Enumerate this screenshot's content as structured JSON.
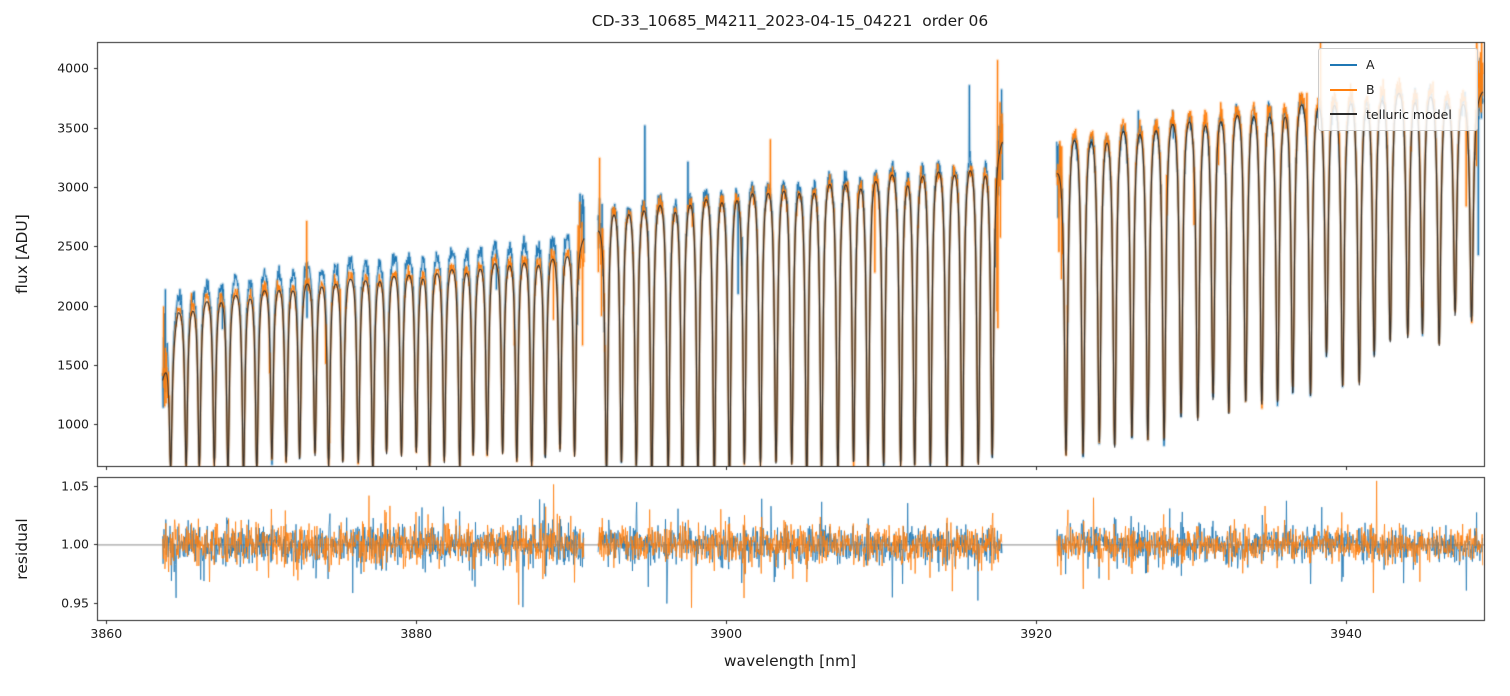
{
  "chart_data": {
    "type": "line",
    "title": "CD-33_10685_M4211_2023-04-15_04221  order 06",
    "xlabel": "wavelength [nm]",
    "xlim": [
      3859.4,
      3948.9
    ],
    "xticks": [
      3860,
      3880,
      3900,
      3920,
      3940
    ],
    "panels": [
      {
        "name": "flux",
        "ylabel": "flux [ADU]",
        "ylim": [
          650,
          4220
        ],
        "yticks": [
          1000,
          1500,
          2000,
          2500,
          3000,
          3500,
          4000
        ]
      },
      {
        "name": "residual",
        "ylabel": "residual",
        "ylim": [
          0.935,
          1.058
        ],
        "yticks": [
          0.95,
          1.0,
          1.05
        ],
        "baseline": 1.0
      }
    ],
    "legend": {
      "position": "upper right",
      "entries": [
        {
          "label": "A",
          "color": "#1f77b4"
        },
        {
          "label": "B",
          "color": "#ff7f0e"
        },
        {
          "label": "telluric model",
          "color": "#2b2b2b"
        }
      ]
    },
    "series": [
      {
        "name": "A",
        "color": "#1f77b4",
        "scales": [
          1.065,
          1.02,
          1.008
        ]
      },
      {
        "name": "B",
        "color": "#ff7f0e",
        "scales": [
          1.012,
          1.005,
          1.018
        ]
      },
      {
        "name": "telluric model",
        "color": "#2b2b2b",
        "scales": [
          1.0,
          1.0,
          1.0
        ]
      }
    ],
    "segments": [
      {
        "x_start": 3863.6,
        "x_end": 3890.8,
        "continuum": [
          [
            3863.6,
            1420
          ],
          [
            3864.6,
            2080
          ],
          [
            3866,
            2200
          ],
          [
            3870,
            2310
          ],
          [
            3875,
            2400
          ],
          [
            3880,
            2460
          ],
          [
            3885,
            2550
          ],
          [
            3888.5,
            2600
          ],
          [
            3890.8,
            2640
          ]
        ],
        "line_spacing": 0.93,
        "line_width": 0.11,
        "line_phase": 0.55,
        "floor_start": 680,
        "floor_end": 800
      },
      {
        "x_start": 3891.7,
        "x_end": 3917.8,
        "continuum": [
          [
            3891.7,
            2750
          ],
          [
            3892.6,
            3060
          ],
          [
            3896,
            3140
          ],
          [
            3902,
            3250
          ],
          [
            3908,
            3350
          ],
          [
            3913,
            3430
          ],
          [
            3917.8,
            3490
          ]
        ],
        "line_spacing": 1.0,
        "line_width": 0.12,
        "line_phase": 0.5,
        "floor_start": 680,
        "floor_end": 730
      },
      {
        "x_start": 3921.3,
        "x_end": 3948.8,
        "continuum": [
          [
            3921.3,
            3250
          ],
          [
            3922.3,
            3720
          ],
          [
            3925,
            3810
          ],
          [
            3930,
            3905
          ],
          [
            3936,
            3990
          ],
          [
            3941,
            4050
          ],
          [
            3945,
            4070
          ],
          [
            3948.8,
            3880
          ]
        ],
        "line_spacing": 1.05,
        "line_width": 0.13,
        "line_phase": 0.6,
        "floor_start": 760,
        "floor_end": 1950
      }
    ],
    "flux_noise": {
      "abs": 16,
      "rel": 0.0062,
      "spike_prob": 0.0045,
      "spike_mag": 0.55,
      "edge_zone_nm": 0.45,
      "edge_sigma_mult": 5,
      "edge_spike_prob": 0.08,
      "edge_spike_mag": 1.1
    },
    "residual_noise": {
      "base": 0.0055,
      "scale": 6.5,
      "spike_prob": 0.015,
      "spike_mag": 0.1
    }
  }
}
